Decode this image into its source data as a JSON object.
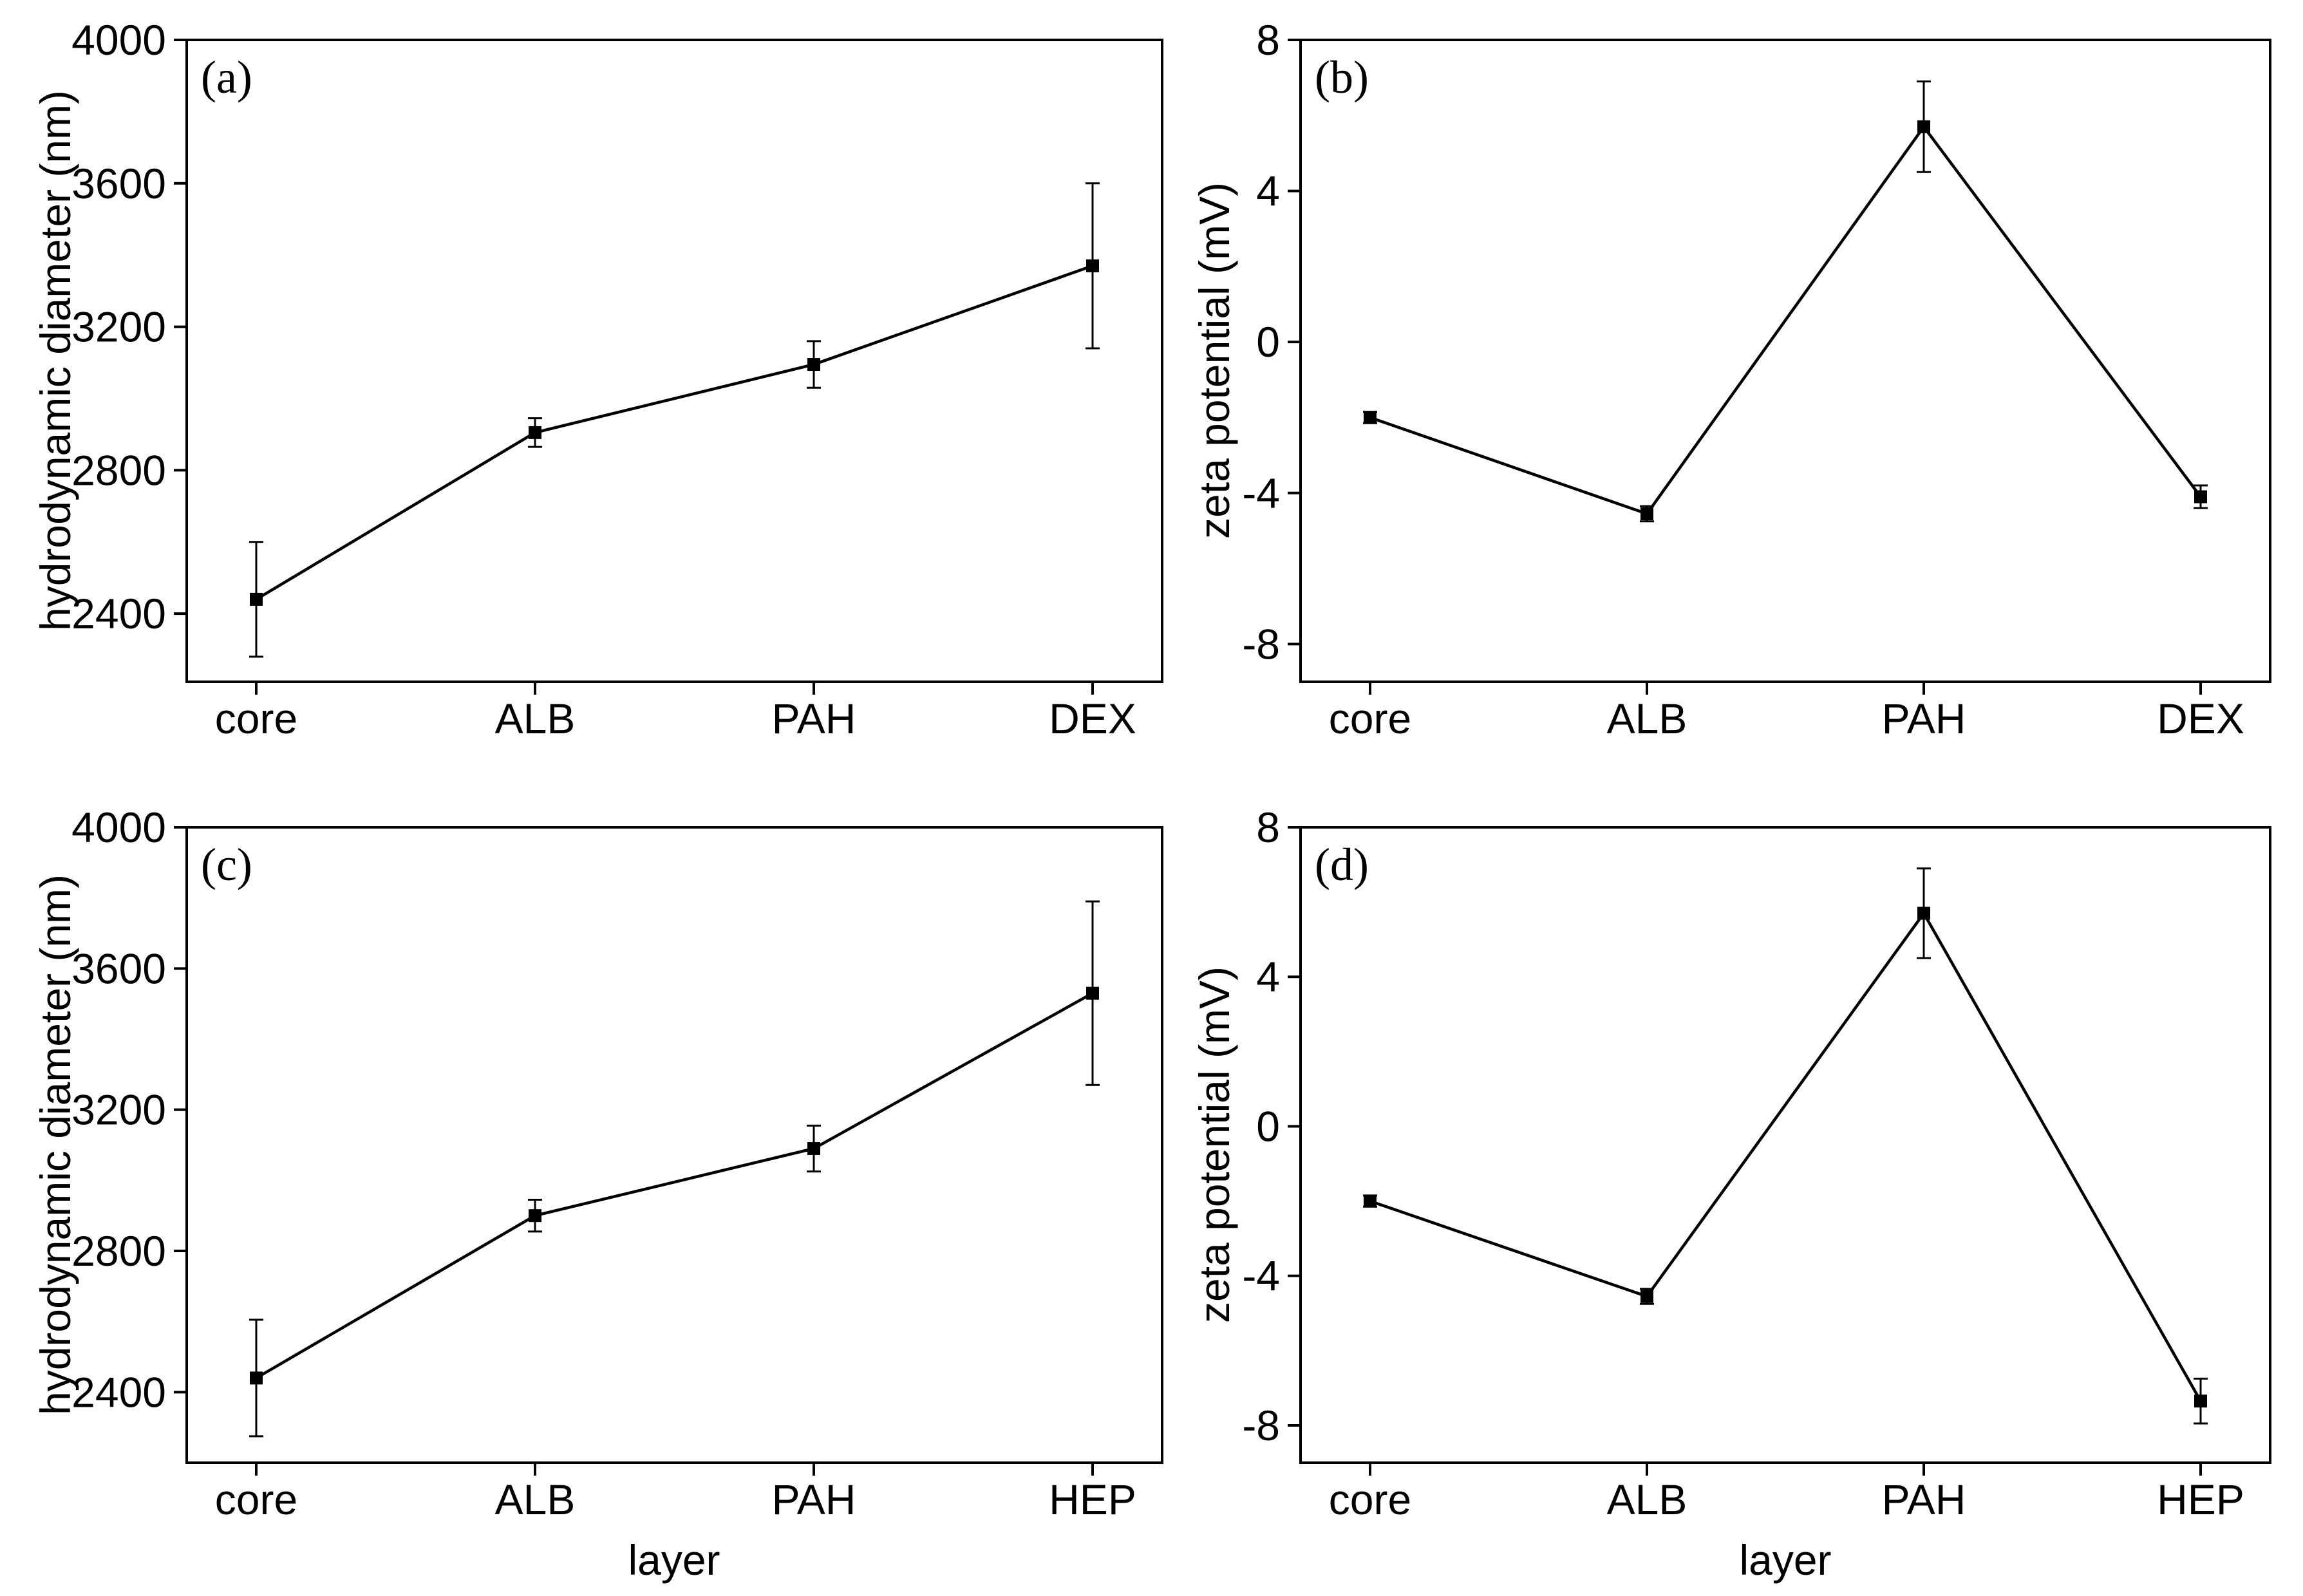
{
  "figure": {
    "background_color": "#ffffff",
    "ink_color": "#000000",
    "marker_shape": "filled-square",
    "layout": "2x2 panel grid"
  },
  "chart_data": [
    {
      "type": "line",
      "panel_label": "(a)",
      "title": "",
      "xlabel": "",
      "ylabel": "hydrodynamic diameter (nm)",
      "categories": [
        "core",
        "ALB",
        "PAH",
        "DEX"
      ],
      "series": [
        {
          "name": "hydrodynamic diameter",
          "values": [
            2440,
            2905,
            3095,
            3370
          ],
          "errors": [
            160,
            40,
            65,
            230
          ]
        }
      ],
      "ylim": [
        2210,
        4000
      ],
      "yticks": [
        2400,
        2800,
        3200,
        3600,
        4000
      ],
      "grid": false,
      "legend": "none",
      "line_color": "#000000"
    },
    {
      "type": "line",
      "panel_label": "(b)",
      "title": "",
      "xlabel": "",
      "ylabel": "zeta potential (mV)",
      "categories": [
        "core",
        "ALB",
        "PAH",
        "DEX"
      ],
      "series": [
        {
          "name": "zeta potential",
          "values": [
            -2.0,
            -4.55,
            5.7,
            -4.1
          ],
          "errors": [
            0.15,
            0.2,
            1.2,
            0.3
          ]
        }
      ],
      "ylim": [
        -9,
        8
      ],
      "yticks": [
        8,
        4,
        0,
        -4,
        -8
      ],
      "grid": false,
      "legend": "none",
      "line_color": "#000000"
    },
    {
      "type": "line",
      "panel_label": "(c)",
      "title": "",
      "xlabel": "layer",
      "ylabel": "hydrodynamic diameter (nm)",
      "categories": [
        "core",
        "ALB",
        "PAH",
        "HEP"
      ],
      "series": [
        {
          "name": "hydrodynamic diameter",
          "values": [
            2440,
            2900,
            3090,
            3530
          ],
          "errors": [
            165,
            45,
            65,
            260
          ]
        }
      ],
      "ylim": [
        2200,
        4000
      ],
      "yticks": [
        2400,
        2800,
        3200,
        3600,
        4000
      ],
      "grid": false,
      "legend": "none",
      "line_color": "#000000"
    },
    {
      "type": "line",
      "panel_label": "(d)",
      "title": "",
      "xlabel": "layer",
      "ylabel": "zeta potential (mV)",
      "categories": [
        "core",
        "ALB",
        "PAH",
        "HEP"
      ],
      "series": [
        {
          "name": "zeta potential",
          "values": [
            -2.0,
            -4.55,
            5.7,
            -7.35
          ],
          "errors": [
            0.15,
            0.2,
            1.2,
            0.6
          ]
        }
      ],
      "ylim": [
        -9,
        8
      ],
      "yticks": [
        8,
        4,
        0,
        -4,
        -8
      ],
      "grid": false,
      "legend": "none",
      "line_color": "#000000"
    }
  ]
}
